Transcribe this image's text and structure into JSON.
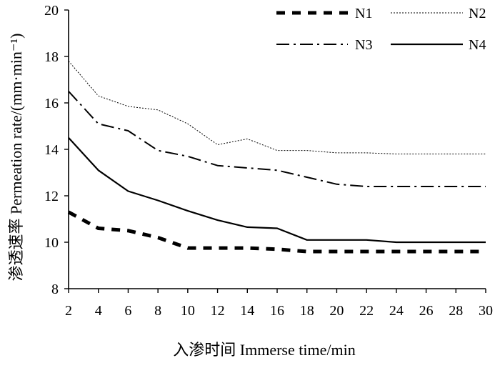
{
  "chart_data": {
    "type": "line",
    "xlabel": "入渗时间 Immerse time/min",
    "ylabel": "渗透速率 Permeation rate/(mm·min⁻¹)",
    "x": [
      2,
      4,
      6,
      8,
      10,
      12,
      14,
      16,
      18,
      20,
      22,
      24,
      26,
      28,
      30
    ],
    "xticks": [
      "2",
      "4",
      "6",
      "8",
      "10",
      "12",
      "14",
      "16",
      "18",
      "20",
      "22",
      "24",
      "26",
      "28",
      "30"
    ],
    "yticks": [
      "8",
      "10",
      "12",
      "14",
      "16",
      "18",
      "20"
    ],
    "xlim": [
      2,
      30
    ],
    "ylim": [
      8,
      20
    ],
    "grid": false,
    "legend_position": "top",
    "series": [
      {
        "name": "N1",
        "style": "dashed-thick",
        "color": "#000000",
        "values": [
          11.3,
          10.6,
          10.5,
          10.2,
          9.75,
          9.75,
          9.75,
          9.7,
          9.6,
          9.6,
          9.6,
          9.6,
          9.6,
          9.6,
          9.6
        ]
      },
      {
        "name": "N2",
        "style": "dotted",
        "color": "#000000",
        "values": [
          17.8,
          16.3,
          15.85,
          15.7,
          15.1,
          14.2,
          14.45,
          13.95,
          13.95,
          13.85,
          13.85,
          13.8,
          13.8,
          13.8,
          13.8
        ]
      },
      {
        "name": "N3",
        "style": "dash-dot",
        "color": "#000000",
        "values": [
          16.5,
          15.1,
          14.8,
          13.95,
          13.7,
          13.3,
          13.2,
          13.1,
          12.8,
          12.5,
          12.4,
          12.4,
          12.4,
          12.4,
          12.4
        ]
      },
      {
        "name": "N4",
        "style": "solid",
        "color": "#000000",
        "values": [
          14.5,
          13.1,
          12.2,
          11.8,
          11.35,
          10.95,
          10.65,
          10.6,
          10.1,
          10.1,
          10.1,
          10.0,
          10.0,
          10.0,
          10.0
        ]
      }
    ]
  }
}
